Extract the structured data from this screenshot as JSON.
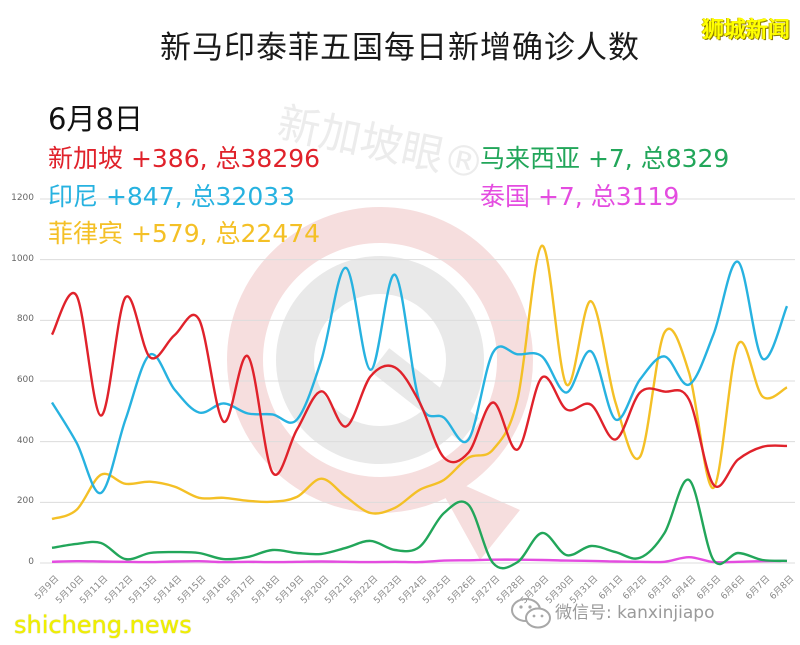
{
  "header": {
    "title": "新马印泰菲五国每日新增确诊人数",
    "brand": "狮城新闻"
  },
  "date_label": "6月8日",
  "legend": {
    "singapore": "新加坡 +386, 总38296",
    "indonesia": "印尼 +847, 总32033",
    "philippines": "菲律宾 +579, 总22474",
    "malaysia": "马来西亚 +7, 总8329",
    "thailand": "泰国 +7, 总3119"
  },
  "colors": {
    "singapore": "#E0222B",
    "indonesia": "#27B2E0",
    "philippines": "#F4C026",
    "malaysia": "#22A65A",
    "thailand": "#E44CE0"
  },
  "watermark": {
    "text": "新加坡眼®"
  },
  "footer": {
    "site": "shicheng.news",
    "wechat": "微信号: kanxinjiapo",
    "wechat_icon": "wechat-icon"
  },
  "chart_data": {
    "type": "line",
    "title": "新马印泰菲五国每日新增确诊人数",
    "xlabel": "",
    "ylabel": "",
    "ylim": [
      0,
      1200
    ],
    "yticks": [
      0,
      200,
      400,
      600,
      800,
      1000,
      1200
    ],
    "grid": true,
    "legend_position": "top-left / top-right text annotations",
    "categories": [
      "5月9日",
      "5月10日",
      "5月11日",
      "5月12日",
      "5月13日",
      "5月14日",
      "5月15日",
      "5月16日",
      "5月17日",
      "5月18日",
      "5月19日",
      "5月20日",
      "5月21日",
      "5月22日",
      "5月23日",
      "5月24日",
      "5月25日",
      "5月26日",
      "5月27日",
      "5月28日",
      "5月29日",
      "5月30日",
      "5月31日",
      "6月1日",
      "6月2日",
      "6月3日",
      "6月4日",
      "6月5日",
      "6月6日",
      "6月7日",
      "6月8日"
    ],
    "series": [
      {
        "key": "singapore",
        "name": "新加坡",
        "values": [
          753,
          882,
          486,
          876,
          678,
          751,
          803,
          466,
          681,
          298,
          440,
          566,
          450,
          615,
          645,
          530,
          347,
          364,
          529,
          374,
          612,
          506,
          522,
          407,
          562,
          565,
          539,
          258,
          341,
          383,
          386
        ]
      },
      {
        "key": "indonesia",
        "name": "印尼",
        "values": [
          529,
          397,
          231,
          473,
          687,
          572,
          496,
          526,
          493,
          490,
          473,
          671,
          973,
          637,
          950,
          532,
          479,
          407,
          694,
          688,
          681,
          562,
          698,
          473,
          605,
          681,
          588,
          754,
          993,
          674,
          847
        ]
      },
      {
        "key": "philippines",
        "name": "菲律宾",
        "values": [
          145,
          175,
          291,
          261,
          268,
          252,
          215,
          215,
          205,
          202,
          218,
          278,
          218,
          165,
          182,
          241,
          274,
          347,
          374,
          539,
          1046,
          588,
          863,
          529,
          350,
          760,
          628,
          248,
          721,
          549,
          579
        ]
      },
      {
        "key": "malaysia",
        "name": "马来西亚",
        "values": [
          50,
          63,
          66,
          13,
          33,
          36,
          33,
          13,
          20,
          43,
          33,
          30,
          50,
          73,
          43,
          53,
          165,
          192,
          0,
          3,
          99,
          26,
          56,
          36,
          17,
          99,
          274,
          10,
          33,
          10,
          7
        ]
      },
      {
        "key": "thailand",
        "name": "泰国",
        "values": [
          4,
          6,
          5,
          4,
          3,
          5,
          6,
          3,
          4,
          3,
          4,
          5,
          4,
          3,
          4,
          3,
          8,
          9,
          11,
          11,
          10,
          8,
          7,
          5,
          4,
          4,
          19,
          3,
          4,
          6,
          7
        ]
      }
    ],
    "annotations": [
      "6月8日",
      "新加坡 +386, 总38296",
      "印尼 +847, 总32033",
      "菲律宾 +579, 总22474",
      "马来西亚 +7, 总8329",
      "泰国 +7, 总3119"
    ]
  }
}
